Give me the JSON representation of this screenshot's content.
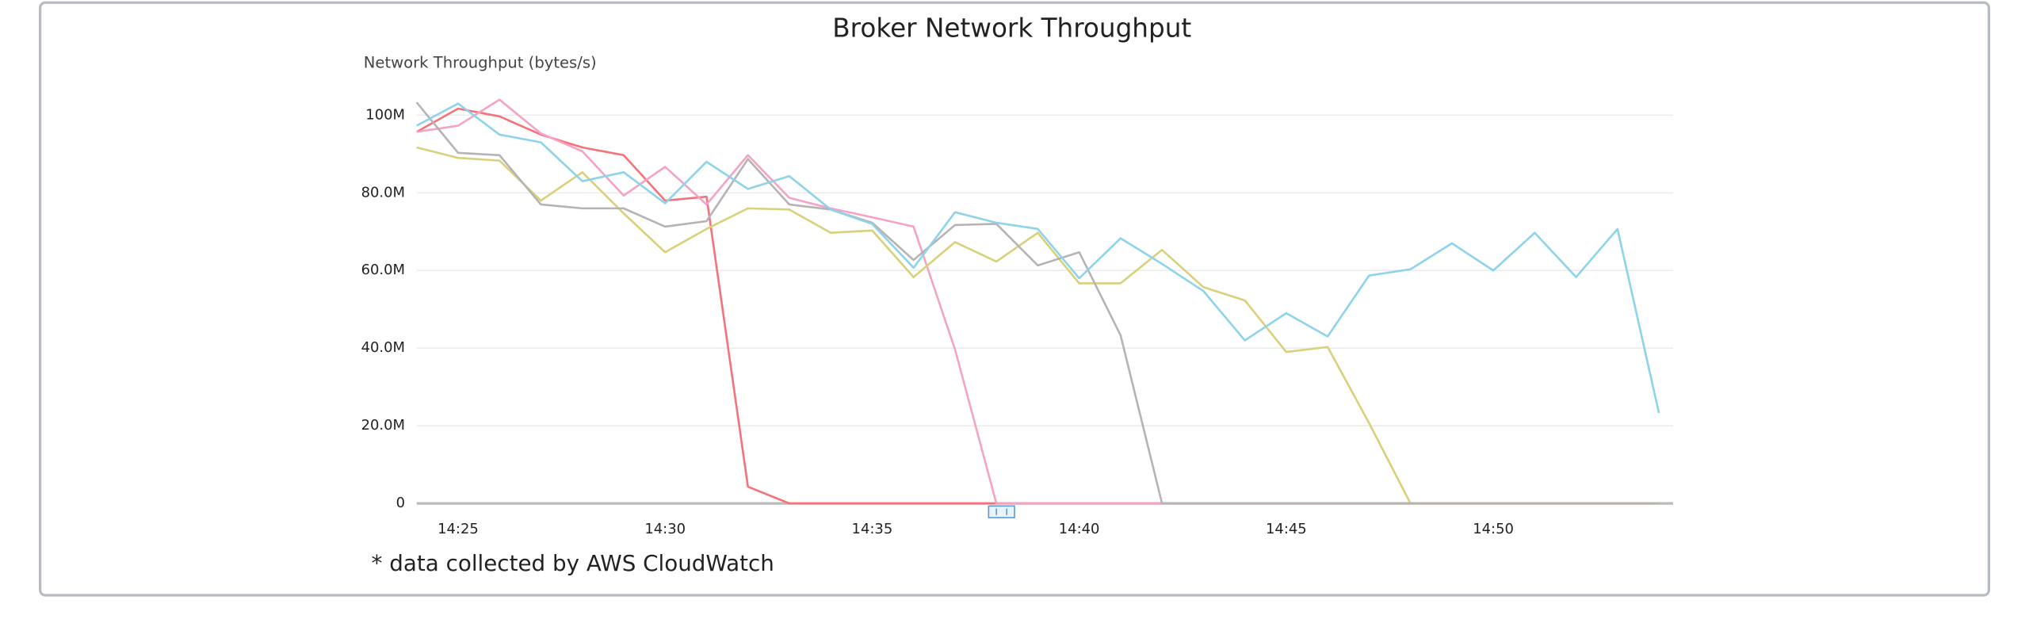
{
  "chart_data": {
    "type": "line",
    "title": "Broker Network Throughput",
    "y_label": "Network Throughput (bytes/s)",
    "footnote": "* data collected by AWS CloudWatch",
    "categories": [
      null,
      "14:25",
      null,
      null,
      null,
      null,
      "14:30",
      null,
      null,
      null,
      null,
      "14:35",
      null,
      null,
      null,
      null,
      "14:40",
      null,
      null,
      null,
      null,
      "14:45",
      null,
      null,
      null,
      null,
      "14:50",
      null,
      null,
      null,
      null
    ],
    "ylim": [
      0,
      105
    ],
    "yticks": [
      0,
      {
        "value": 20,
        "label": "20.0M"
      },
      {
        "value": 40,
        "label": "40.0M"
      },
      {
        "value": 60,
        "label": "60.0M"
      },
      {
        "value": 80,
        "label": "80.0M"
      },
      {
        "value": 100,
        "label": "100M"
      }
    ],
    "grid": true,
    "series": [
      {
        "color": "#f4727a",
        "values": [
          95.7,
          101.7,
          99.7,
          95,
          91.7,
          89.7,
          78,
          79,
          4.3,
          0,
          0,
          0,
          0,
          0,
          0,
          0,
          0,
          0,
          0,
          0,
          0,
          0,
          0,
          0,
          0,
          0,
          0,
          0,
          0,
          0,
          0
        ]
      },
      {
        "color": "#f5a3c4",
        "values": [
          95.7,
          97.3,
          104,
          95.3,
          90.7,
          79.3,
          86.7,
          77,
          89.7,
          78.7,
          76,
          73.7,
          71.3,
          39.7,
          0,
          0,
          0,
          0,
          0,
          0,
          0,
          0,
          0,
          0,
          0,
          0,
          0,
          0,
          0,
          0,
          0
        ]
      },
      {
        "color": "#d8d07a",
        "values": [
          91.7,
          89,
          88.3,
          78,
          85.3,
          74.7,
          64.7,
          70.7,
          76,
          75.7,
          69.7,
          70.3,
          58.3,
          67.3,
          62.3,
          69.7,
          56.7,
          56.7,
          65.3,
          55.7,
          52.3,
          39,
          40.3,
          20.7,
          0,
          0,
          0,
          0,
          0,
          0,
          0
        ]
      },
      {
        "color": "#b7b3b3",
        "values": [
          103.3,
          90.3,
          89.7,
          77,
          76,
          76,
          71.3,
          72.7,
          88.7,
          77,
          75.7,
          72.3,
          62.7,
          71.7,
          72,
          61.3,
          64.7,
          43.3,
          0,
          0,
          0,
          0,
          0,
          0,
          0,
          0,
          0,
          0,
          0,
          0,
          0
        ]
      },
      {
        "color": "#8dd3ea",
        "values": [
          97.3,
          103,
          95,
          93,
          83,
          85.3,
          77.3,
          88,
          81,
          84.3,
          75.7,
          72,
          60.7,
          75,
          72.3,
          70.7,
          58,
          68.3,
          61.7,
          54.7,
          42,
          49,
          43,
          58.7,
          60.3,
          67,
          60,
          69.7,
          58.3,
          70.7,
          23.3
        ]
      }
    ]
  }
}
